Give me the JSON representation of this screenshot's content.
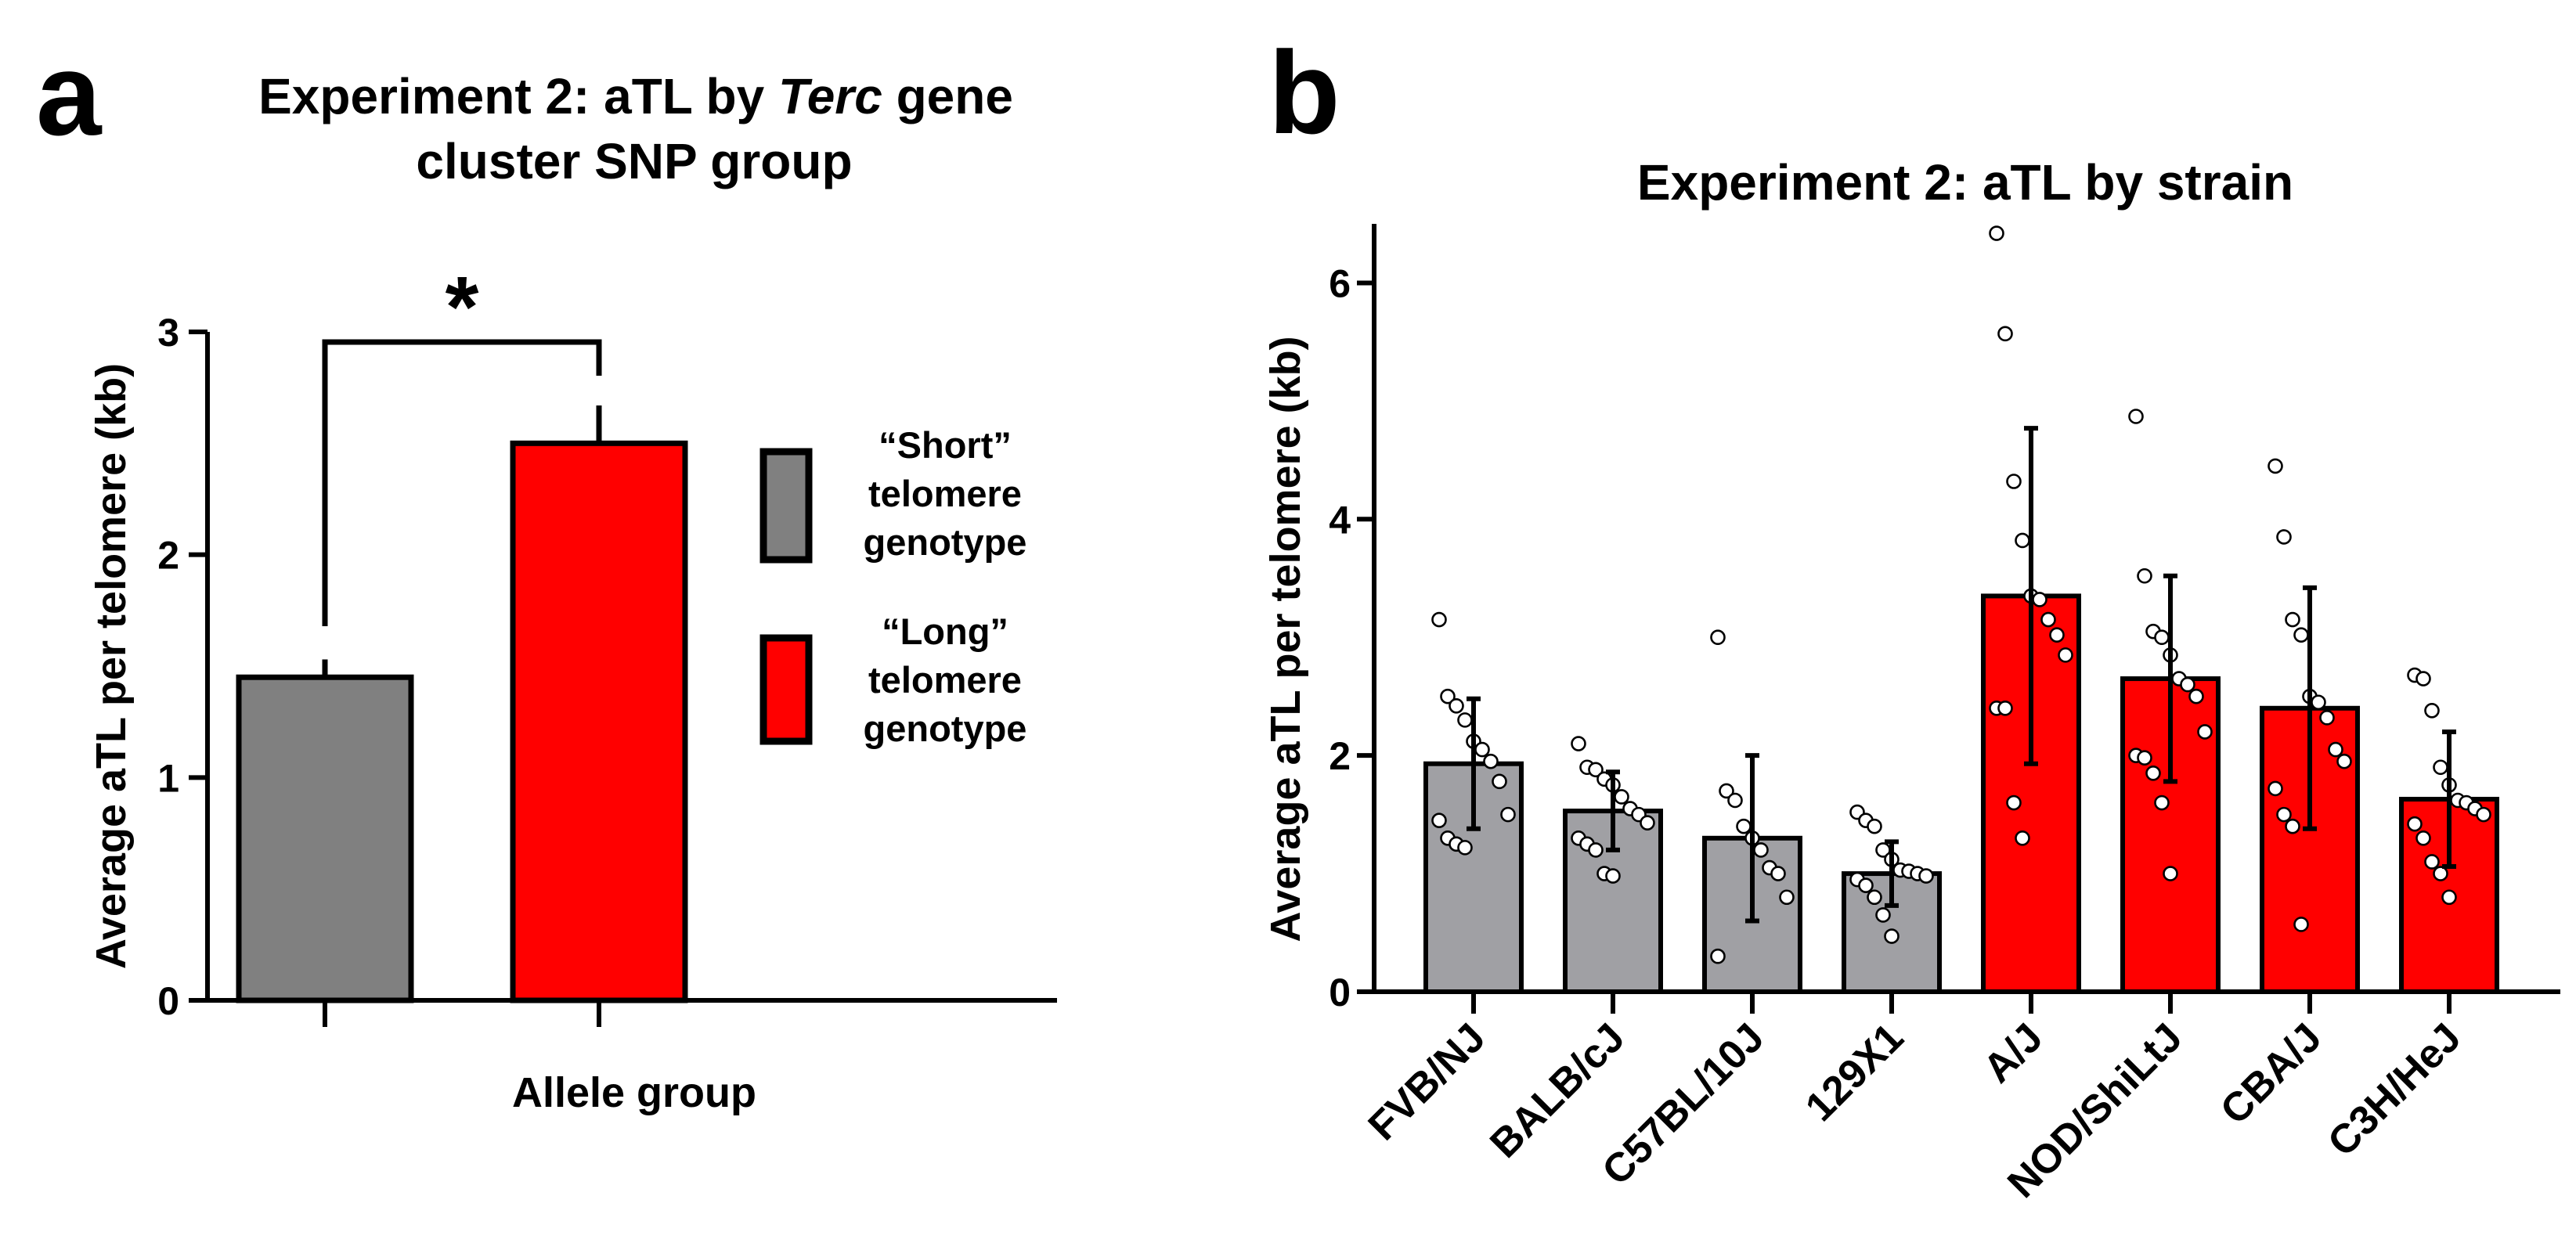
{
  "colors": {
    "short": "#808080",
    "long": "#ff0000",
    "short_b": "#a0a0a4",
    "long_b": "#ff0000",
    "ink": "#000000"
  },
  "panel_a": {
    "label": "a",
    "title_line1_prefix": "Experiment 2: aTL by ",
    "title_line1_italic": "Terc",
    "title_line1_suffix": " gene",
    "title_line2": "cluster SNP group",
    "significance": "*",
    "legend": [
      {
        "lines": [
          "“Short”",
          "telomere",
          "genotype"
        ],
        "color": "#808080"
      },
      {
        "lines": [
          "“Long”",
          "telomere",
          "genotype"
        ],
        "color": "#ff0000"
      }
    ]
  },
  "panel_b": {
    "label": "b"
  },
  "chart_data": [
    {
      "type": "bar",
      "title": "Experiment 2: aTL by Terc gene cluster SNP group",
      "xlabel": "Allele group",
      "ylabel": "Average aTL per telomere (kb)",
      "ylim": [
        0,
        3
      ],
      "yticks": [
        0,
        1,
        2,
        3
      ],
      "categories": [
        "“Short” telomere genotype",
        "“Long” telomere genotype"
      ],
      "values": [
        1.45,
        2.5
      ],
      "error": [
        0.08,
        0.17
      ],
      "significance": "*"
    },
    {
      "type": "bar",
      "title": "Experiment 2: aTL by strain",
      "xlabel": "",
      "ylabel": "Average aTL per telomere (kb)",
      "ylim": [
        0,
        6.5
      ],
      "yticks": [
        0,
        2,
        4,
        6
      ],
      "categories": [
        "FVB/NJ",
        "BALB/cJ",
        "C57BL/10J",
        "129X1",
        "A/J",
        "NOD/ShiLtJ",
        "CBA/J",
        "C3H/HeJ"
      ],
      "values": [
        1.93,
        1.53,
        1.3,
        1.0,
        3.35,
        2.65,
        2.4,
        1.63
      ],
      "sd": [
        0.55,
        0.33,
        0.7,
        0.27,
        1.42,
        0.87,
        1.02,
        0.57
      ],
      "group": [
        "short",
        "short",
        "short",
        "short",
        "long",
        "long",
        "long",
        "long"
      ],
      "points": [
        [
          3.15,
          2.5,
          2.42,
          2.3,
          2.12,
          2.05,
          1.95,
          1.78,
          1.5,
          1.45,
          1.3,
          1.25,
          1.22
        ],
        [
          2.1,
          1.9,
          1.88,
          1.8,
          1.75,
          1.65,
          1.55,
          1.5,
          1.43,
          1.3,
          1.25,
          1.2,
          1.0,
          0.98
        ],
        [
          3.0,
          1.7,
          1.62,
          1.4,
          1.3,
          1.2,
          1.05,
          1.0,
          0.8,
          0.3
        ],
        [
          1.52,
          1.45,
          1.4,
          1.2,
          1.12,
          1.03,
          1.02,
          1.0,
          0.98,
          0.95,
          0.9,
          0.8,
          0.65,
          0.47
        ],
        [
          6.42,
          5.57,
          4.32,
          3.82,
          3.35,
          3.32,
          3.15,
          3.02,
          2.85,
          2.4,
          2.4,
          1.6,
          1.3
        ],
        [
          4.87,
          3.52,
          3.05,
          3.0,
          2.85,
          2.65,
          2.6,
          2.5,
          2.2,
          2.0,
          1.98,
          1.85,
          1.6,
          1.0
        ],
        [
          4.45,
          3.85,
          3.15,
          3.02,
          2.5,
          2.45,
          2.32,
          2.05,
          1.95,
          1.72,
          1.5,
          1.4,
          0.57
        ],
        [
          2.68,
          2.65,
          2.38,
          1.9,
          1.75,
          1.62,
          1.6,
          1.55,
          1.5,
          1.42,
          1.3,
          1.1,
          1.0,
          0.8
        ]
      ]
    }
  ]
}
